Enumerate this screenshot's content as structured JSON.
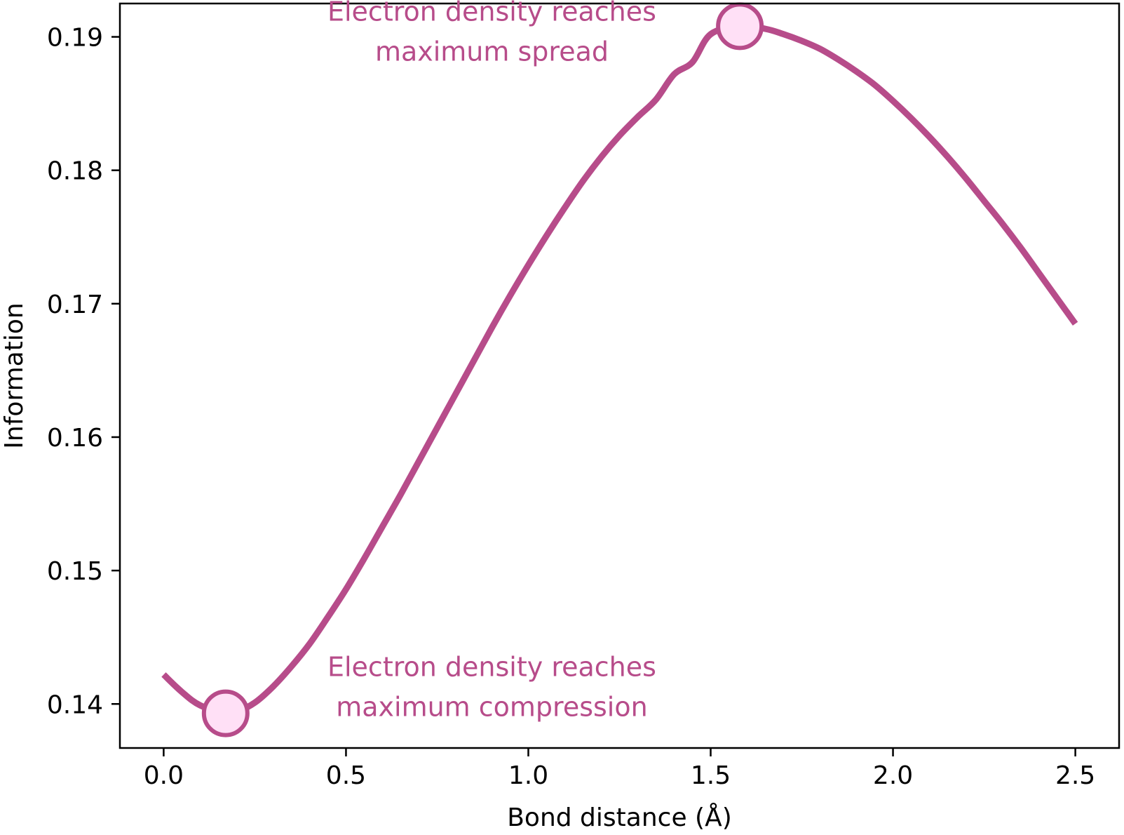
{
  "chart_data": {
    "type": "line",
    "title": "",
    "xlabel": "Bond distance (Å)",
    "ylabel": "Information",
    "xlim": [
      -0.12,
      2.62
    ],
    "ylim": [
      0.1367,
      0.1925
    ],
    "xticks": [
      0.0,
      0.5,
      1.0,
      1.5,
      2.0,
      2.5
    ],
    "xtick_labels": [
      "0.0",
      "0.5",
      "1.0",
      "1.5",
      "2.0",
      "2.5"
    ],
    "yticks": [
      0.14,
      0.15,
      0.16,
      0.17,
      0.18,
      0.19
    ],
    "ytick_labels": [
      "0.14",
      "0.15",
      "0.16",
      "0.17",
      "0.18",
      "0.19"
    ],
    "grid": false,
    "colors": {
      "line": "#b74c8a",
      "marker_fill": "#ffe0f6",
      "marker_edge": "#b74c8a",
      "annotation": "#b74c8a"
    },
    "series": [
      {
        "x": [
          0.0,
          0.05,
          0.1,
          0.17,
          0.2,
          0.25,
          0.3,
          0.35,
          0.4,
          0.45,
          0.5,
          0.55,
          0.6,
          0.65,
          0.7,
          0.75,
          0.8,
          0.85,
          0.9,
          0.95,
          1.0,
          1.05,
          1.1,
          1.15,
          1.2,
          1.25,
          1.3,
          1.35,
          1.4,
          1.45,
          1.5,
          1.58,
          1.65,
          1.7,
          1.75,
          1.8,
          1.85,
          1.9,
          1.95,
          2.0,
          2.05,
          2.1,
          2.15,
          2.2,
          2.25,
          2.3,
          2.35,
          2.4,
          2.45,
          2.5
        ],
        "y": [
          0.1422,
          0.1409,
          0.1399,
          0.1393,
          0.1394,
          0.1401,
          0.1413,
          0.1428,
          0.1445,
          0.1465,
          0.1486,
          0.1509,
          0.1533,
          0.1557,
          0.1582,
          0.1607,
          0.1632,
          0.1657,
          0.1682,
          0.1706,
          0.1729,
          0.1751,
          0.1772,
          0.1792,
          0.181,
          0.1826,
          0.184,
          0.1853,
          0.1872,
          0.1881,
          0.1902,
          0.1908,
          0.1906,
          0.1902,
          0.1897,
          0.1891,
          0.1883,
          0.1874,
          0.1864,
          0.1852,
          0.1839,
          0.1825,
          0.181,
          0.1794,
          0.1777,
          0.176,
          0.1742,
          0.1723,
          0.1704,
          0.1685
        ]
      }
    ],
    "markers": [
      {
        "x": 0.17,
        "y": 0.1393
      },
      {
        "x": 1.58,
        "y": 0.1908
      }
    ],
    "annotations": [
      {
        "lines": [
          "Electron density reaches",
          "maximum spread"
        ],
        "x": 0.9,
        "y": 0.1912
      },
      {
        "lines": [
          "Electron density reaches",
          "maximum compression"
        ],
        "x": 0.9,
        "y": 0.1421
      }
    ]
  }
}
